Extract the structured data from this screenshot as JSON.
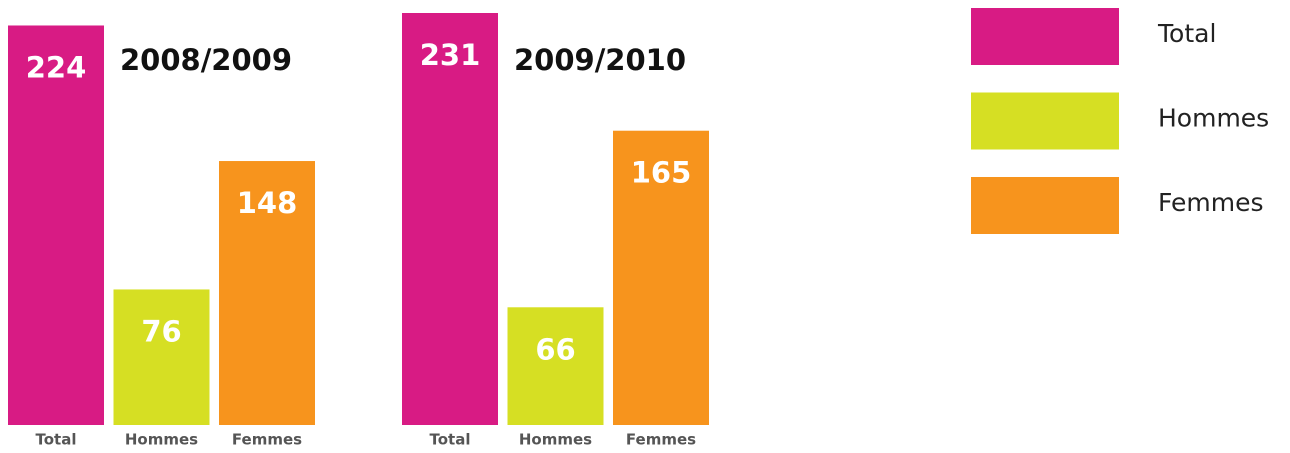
{
  "chart_data": [
    {
      "type": "bar",
      "title": "2008/2009",
      "categories": [
        "Total",
        "Hommes",
        "Femmes"
      ],
      "values": [
        224,
        76,
        148
      ],
      "colors": [
        "#d81b84",
        "#d6df23",
        "#f7941d"
      ]
    },
    {
      "type": "bar",
      "title": "2009/2010",
      "categories": [
        "Total",
        "Hommes",
        "Femmes"
      ],
      "values": [
        231,
        66,
        165
      ],
      "colors": [
        "#d81b84",
        "#d6df23",
        "#f7941d"
      ]
    }
  ],
  "legend": {
    "entries": [
      {
        "name": "Total",
        "color": "#d81b84"
      },
      {
        "name": "Hommes",
        "color": "#d6df23"
      },
      {
        "name": "Femmes",
        "color": "#f7941d"
      }
    ]
  }
}
